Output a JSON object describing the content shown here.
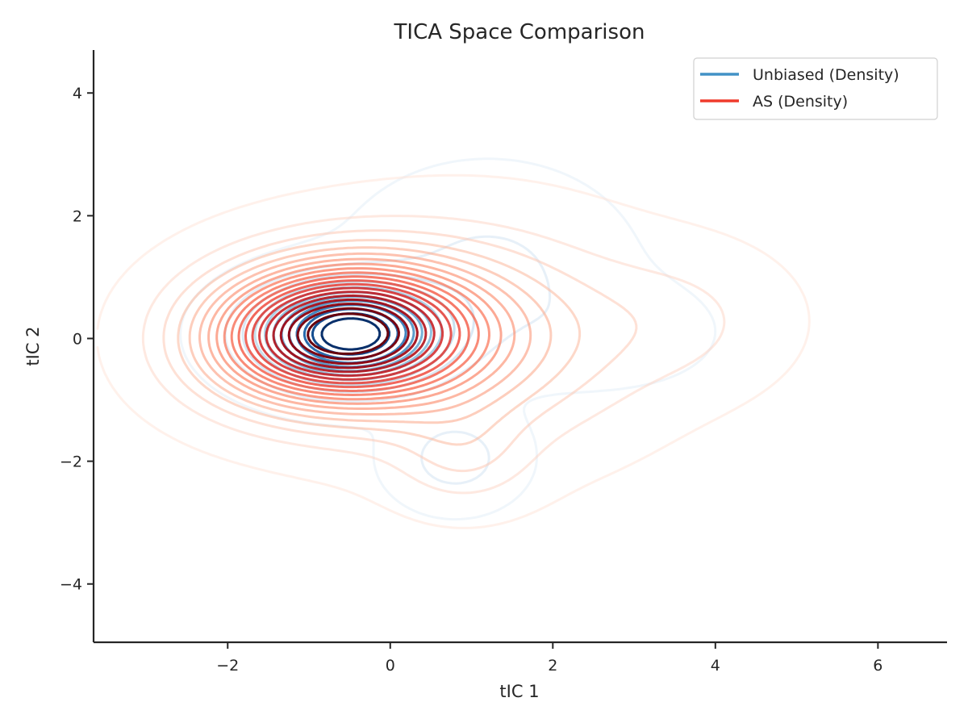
{
  "chart_data": {
    "type": "contour",
    "title": "TICA Space Comparison",
    "xlabel": "tIC 1",
    "ylabel": "tIC 2",
    "xlim": [
      -3.65,
      6.85
    ],
    "ylim": [
      -4.95,
      4.7
    ],
    "xticks": [
      -2,
      0,
      2,
      4,
      6
    ],
    "yticks": [
      -4,
      -2,
      0,
      2,
      4
    ],
    "xtick_labels": [
      "−2",
      "0",
      "2",
      "4",
      "6"
    ],
    "ytick_labels": [
      "−4",
      "−2",
      "0",
      "2",
      "4"
    ],
    "grid": false,
    "legend_position": "top-right",
    "series": [
      {
        "name": "Unbiased (Density)",
        "legend_color": "#4292c6",
        "colormap": [
          "#deebf7",
          "#c6dbef",
          "#9ecae1",
          "#6baed6",
          "#4292c6",
          "#2171b5",
          "#08519c",
          "#08306b"
        ],
        "levels": 12,
        "components": [
          {
            "center": [
              -0.5,
              0.07
            ],
            "sigma": [
              0.7,
              0.5
            ],
            "weight": 1.0
          },
          {
            "center": [
              0.8,
              -1.95
            ],
            "sigma": [
              0.45,
              0.45
            ],
            "weight": 0.14
          },
          {
            "center": [
              1.2,
              1.0
            ],
            "sigma": [
              0.9,
              0.9
            ],
            "weight": 0.12
          },
          {
            "center": [
              2.8,
              0.1
            ],
            "sigma": [
              0.7,
              0.5
            ],
            "weight": 0.05
          }
        ]
      },
      {
        "name": "AS (Density)",
        "legend_color": "#ef3b2c",
        "colormap": [
          "#fee0d2",
          "#fcbba1",
          "#fc9272",
          "#fb6a4a",
          "#ef3b2c",
          "#cb181d",
          "#99000d",
          "#67000d"
        ],
        "levels": 20,
        "components": [
          {
            "center": [
              -0.5,
              0.1
            ],
            "sigma": [
              1.0,
              0.75
            ],
            "weight": 1.0
          },
          {
            "center": [
              1.0,
              0.0
            ],
            "sigma": [
              1.3,
              1.1
            ],
            "weight": 0.25
          },
          {
            "center": [
              3.6,
              0.3
            ],
            "sigma": [
              0.85,
              0.75
            ],
            "weight": 0.07
          },
          {
            "center": [
              0.9,
              -1.9
            ],
            "sigma": [
              0.55,
              0.55
            ],
            "weight": 0.1
          },
          {
            "center": [
              -1.5,
              -0.1
            ],
            "sigma": [
              0.8,
              0.7
            ],
            "weight": 0.2
          }
        ]
      }
    ]
  }
}
